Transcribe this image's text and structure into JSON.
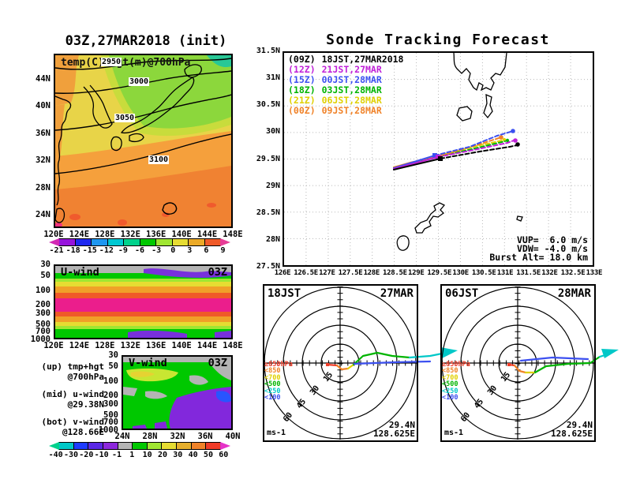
{
  "temp_map": {
    "title": "03Z,27MAR2018 (init)",
    "field_label": "temp(C)+hgt(m)@700hPa",
    "contour_labels": [
      "2950",
      "3000",
      "3050",
      "3100"
    ],
    "y_ticks": [
      "44N",
      "40N",
      "36N",
      "32N",
      "28N",
      "24N"
    ],
    "x_ticks": [
      "120E",
      "124E",
      "128E",
      "132E",
      "136E",
      "140E",
      "144E",
      "148E"
    ],
    "colorbar": {
      "segments": [
        {
          "c": "#d228b4"
        },
        {
          "c": "#9614dc"
        },
        {
          "c": "#1e28f0"
        },
        {
          "c": "#1e96f0"
        },
        {
          "c": "#00c8d2"
        },
        {
          "c": "#00d28c"
        },
        {
          "c": "#00c800"
        },
        {
          "c": "#a0e632"
        },
        {
          "c": "#e6dc32"
        },
        {
          "c": "#ebaa28"
        },
        {
          "c": "#f05a28"
        },
        {
          "c": "#e63c96"
        }
      ],
      "labels": [
        "-21",
        "-18",
        "-15",
        "-12",
        "-9",
        "-6",
        "-3",
        "0",
        "3",
        "6",
        "9"
      ]
    }
  },
  "uwind": {
    "title": "U-wind",
    "time": "03Z",
    "y_ticks": [
      "30",
      "50",
      "100",
      "200",
      "300",
      "500",
      "700",
      "1000"
    ],
    "x_ticks": [
      "120E",
      "124E",
      "128E",
      "132E",
      "136E",
      "140E",
      "144E",
      "148E"
    ]
  },
  "vwind": {
    "title": "V-wind",
    "time": "03Z",
    "y_ticks": [
      "30",
      "50",
      "100",
      "200",
      "300",
      "500",
      "700",
      "1000"
    ],
    "x_ticks": [
      "24N",
      "28N",
      "32N",
      "36N",
      "40N"
    ],
    "side_labels": [
      {
        "l1": "(up) tmp+hgt",
        "l2": "@700hPa"
      },
      {
        "l1": "(mid) u-wind",
        "l2": "@29.38N"
      },
      {
        "l1": "(bot) v-wind",
        "l2": "@128.66E"
      }
    ],
    "colorbar": {
      "segments": [
        {
          "c": "#00d28c"
        },
        {
          "c": "#00c8c8"
        },
        {
          "c": "#1e3cff"
        },
        {
          "c": "#5a28e6"
        },
        {
          "c": "#8c28dc"
        },
        {
          "c": "#b4b4b4"
        },
        {
          "c": "#00c800"
        },
        {
          "c": "#a0e632"
        },
        {
          "c": "#e6dc32"
        },
        {
          "c": "#e6af2d"
        },
        {
          "c": "#f08228"
        },
        {
          "c": "#f03c28"
        },
        {
          "c": "#e632c8"
        }
      ],
      "labels": [
        "-40",
        "-30",
        "-20",
        "-10",
        "-1",
        "1",
        "10",
        "20",
        "30",
        "40",
        "50",
        "60"
      ]
    }
  },
  "sonde": {
    "title": "Sonde Tracking Forecast",
    "legend": [
      {
        "utc": "(09Z)",
        "jst": "18JST,27MAR2018",
        "color": "#000000"
      },
      {
        "utc": "(12Z)",
        "jst": "21JST,27MAR",
        "color": "#c020d8"
      },
      {
        "utc": "(15Z)",
        "jst": "00JST,28MAR",
        "color": "#3c50f0"
      },
      {
        "utc": "(18Z)",
        "jst": "03JST,28MAR",
        "color": "#00b400"
      },
      {
        "utc": "(21Z)",
        "jst": "06JST,28MAR",
        "color": "#e0d000"
      },
      {
        "utc": "(00Z)",
        "jst": "09JST,28MAR",
        "color": "#f08228"
      }
    ],
    "y_ticks": [
      "31.5N",
      "31N",
      "30.5N",
      "30N",
      "29.5N",
      "29N",
      "28.5N",
      "28N",
      "27.5N"
    ],
    "x_ticks": [
      "126E",
      "126.5E",
      "127E",
      "127.5E",
      "128E",
      "128.5E",
      "129E",
      "129.5E",
      "130E",
      "130.5E",
      "131E",
      "131.5E",
      "132E",
      "132.5E",
      "133E"
    ],
    "info": [
      "VUP=  6.0 m/s",
      "VDW= -4.0 m/s",
      "Burst Alt= 18.0 km"
    ]
  },
  "hodographs": [
    {
      "time": "18JST",
      "date": "27MAR",
      "unit": "ms-1",
      "lat": "29.4N",
      "lon": "128.625E"
    },
    {
      "time": "06JST",
      "date": "28MAR",
      "unit": "ms-1",
      "lat": "29.4N",
      "lon": "128.625E"
    }
  ],
  "hodo_ring_labels": [
    "15",
    "30",
    "45",
    "60"
  ],
  "hodo_legend": [
    {
      "label": "≥850hPa",
      "color": "#f03c28"
    },
    {
      "label": "<850",
      "color": "#f08228"
    },
    {
      "label": "<700",
      "color": "#e0d000"
    },
    {
      "label": "<500",
      "color": "#00b400"
    },
    {
      "label": "<250",
      "color": "#00c8c8"
    },
    {
      "label": "<100",
      "color": "#3c50f0"
    }
  ],
  "chart_data": [
    {
      "type": "heatmap",
      "title": "03Z,27MAR2018 (init)",
      "subtitle": "temp(C)+hgt(m)@700hPa",
      "x_range": [
        "120E",
        "148E"
      ],
      "y_range": [
        "24N",
        "44N"
      ],
      "height_contours_m": [
        2950,
        3000,
        3050,
        3100
      ],
      "colorbar_degC_boundaries": [
        -21,
        -18,
        -15,
        -12,
        -9,
        -6,
        -3,
        0,
        3,
        6,
        9
      ],
      "description": "700hPa temperature shading (green/cool NE, orange/warm S) with geopotential height contours over Japan"
    },
    {
      "type": "line",
      "title": "Sonde Tracking Forecast",
      "x_range": [
        "126E",
        "133E"
      ],
      "y_range": [
        "27.5N",
        "31.5N"
      ],
      "launch_point": [
        128.46,
        29.37
      ],
      "series": [
        {
          "name": "(09Z) 18JST,27MAR2018",
          "color": "#000000",
          "approx_end": [
            131.25,
            29.8
          ]
        },
        {
          "name": "(12Z) 21JST,27MAR",
          "color": "#c020d8",
          "approx_end": [
            131.2,
            29.87
          ]
        },
        {
          "name": "(15Z) 00JST,28MAR",
          "color": "#3c50f0",
          "approx_end": [
            131.15,
            30.05
          ]
        },
        {
          "name": "(18Z) 03JST,28MAR",
          "color": "#00b400",
          "approx_end": [
            131.05,
            29.9
          ]
        },
        {
          "name": "(21Z) 06JST,28MAR",
          "color": "#e0d000",
          "approx_end": [
            130.95,
            29.9
          ]
        },
        {
          "name": "(00Z) 09JST,28MAR",
          "color": "#f08228",
          "approx_end": [
            130.85,
            29.95
          ]
        }
      ],
      "annotations": [
        "VUP=  6.0 m/s",
        "VDW= -4.0 m/s",
        "Burst Alt= 18.0 km"
      ]
    },
    {
      "type": "heatmap",
      "title": "U-wind 03Z",
      "x_range": [
        "120E",
        "148E"
      ],
      "y_ticks_hPa": [
        30,
        50,
        100,
        200,
        300,
        500,
        700,
        1000
      ],
      "description": "zonal wind cross-section; jet maximum (magenta, >60 m/s) near 200hPa"
    },
    {
      "type": "heatmap",
      "title": "V-wind 03Z",
      "x_range": [
        "24N",
        "40N"
      ],
      "y_ticks_hPa": [
        30,
        50,
        100,
        200,
        300,
        500,
        700,
        1000
      ],
      "colorbar_ms_boundaries": [
        -40,
        -30,
        -20,
        -10,
        -1,
        1,
        10,
        20,
        30,
        40,
        50,
        60
      ],
      "description": "meridional wind cross-section; northerlies (purple) at upper right"
    },
    {
      "type": "line",
      "title": "Hodograph 18JST 27MAR",
      "rings_ms": [
        15,
        30,
        45,
        60
      ],
      "location": [
        "29.4N",
        "128.625E"
      ],
      "layers": [
        "≥850hPa",
        "<850",
        "<700",
        "<500",
        "<250",
        "<100"
      ]
    },
    {
      "type": "line",
      "title": "Hodograph 06JST 28MAR",
      "rings_ms": [
        15,
        30,
        45,
        60
      ],
      "location": [
        "29.4N",
        "128.625E"
      ],
      "layers": [
        "≥850hPa",
        "<850",
        "<700",
        "<500",
        "<250",
        "<100"
      ]
    }
  ]
}
